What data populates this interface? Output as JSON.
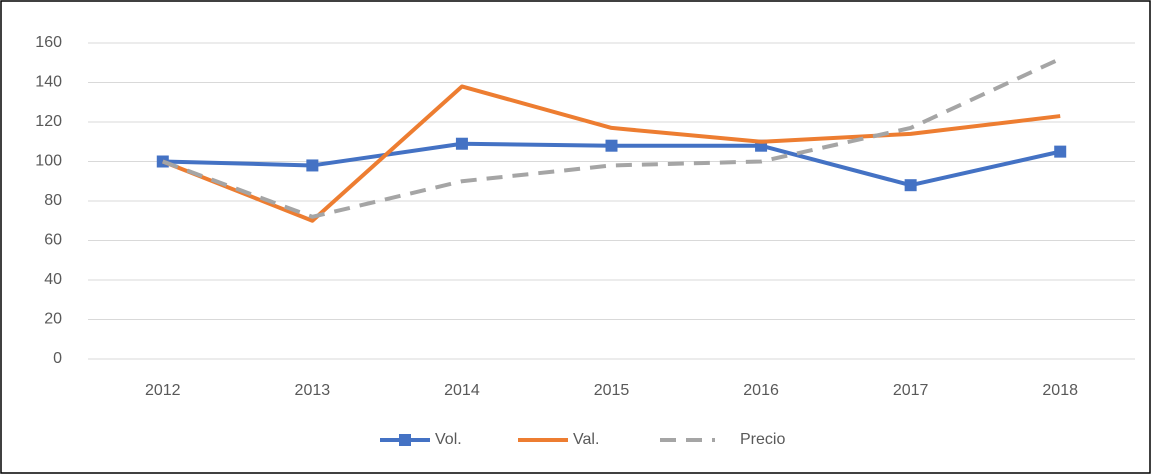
{
  "chart_data": {
    "type": "line",
    "categories": [
      "2012",
      "2013",
      "2014",
      "2015",
      "2016",
      "2017",
      "2018"
    ],
    "series": [
      {
        "name": "Vol.",
        "color": "#4472c4",
        "marker": "square",
        "values": [
          100,
          98,
          109,
          108,
          108,
          88,
          105
        ]
      },
      {
        "name": "Val.",
        "color": "#ed7d31",
        "values": [
          100,
          70,
          138,
          117,
          110,
          114,
          123
        ]
      },
      {
        "name": "Precio",
        "color": "#a5a5a5",
        "dash": true,
        "values": [
          100,
          72,
          90,
          98,
          100,
          117,
          152
        ]
      }
    ],
    "ylim": [
      0,
      160
    ],
    "yticks": [
      0,
      20,
      40,
      60,
      80,
      100,
      120,
      140,
      160
    ],
    "grid": true,
    "legend": "bottom"
  }
}
